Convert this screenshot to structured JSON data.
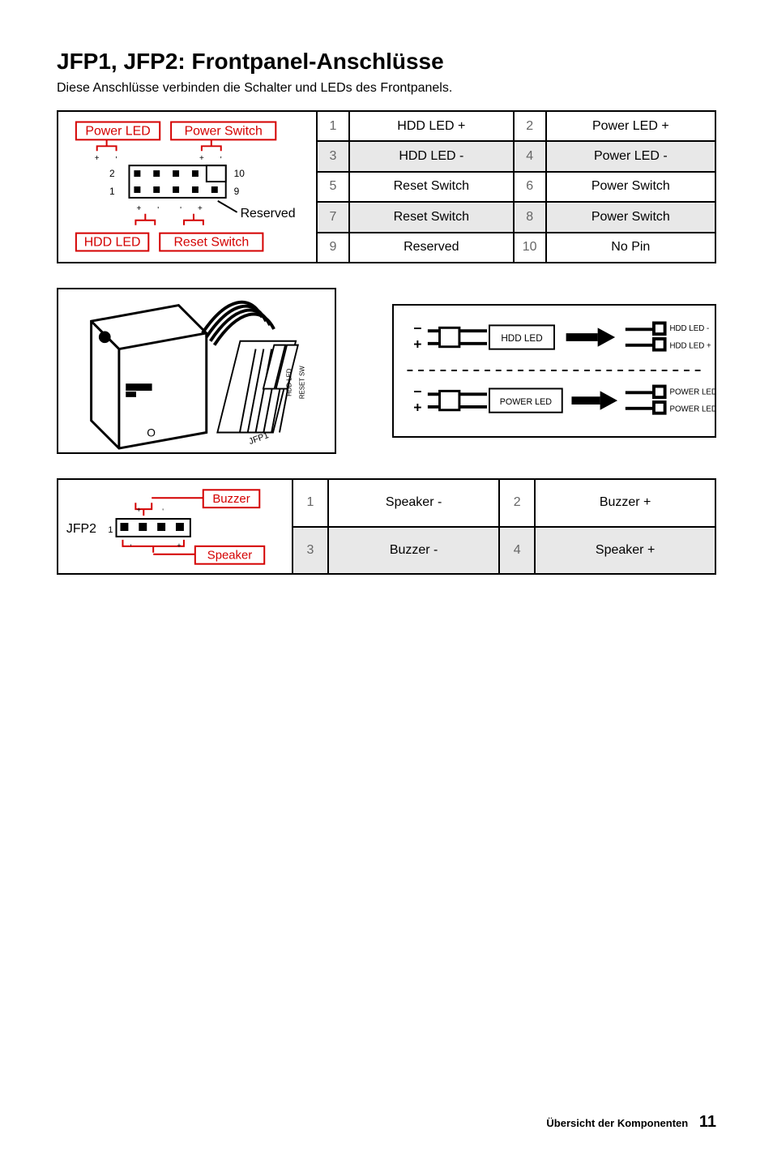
{
  "title": "JFP1, JFP2: Frontpanel-Anschlüsse",
  "subtitle": "Diese Anschlüsse verbinden die Schalter und LEDs des Frontpanels.",
  "jfp1": {
    "labels": {
      "power_led": "Power LED",
      "power_switch": "Power Switch",
      "reserved": "Reserved",
      "hdd_led": "HDD LED",
      "reset_switch": "Reset Switch",
      "pin2": "2",
      "pin1": "1",
      "pin10": "10",
      "pin9": "9",
      "polarity": "+"
    },
    "pins": [
      {
        "n": "1",
        "label": "HDD LED +",
        "n2": "2",
        "label2": "Power LED +",
        "shade": false
      },
      {
        "n": "3",
        "label": "HDD LED -",
        "n2": "4",
        "label2": "Power LED -",
        "shade": true
      },
      {
        "n": "5",
        "label": "Reset Switch",
        "n2": "6",
        "label2": "Power Switch",
        "shade": false
      },
      {
        "n": "7",
        "label": "Reset Switch",
        "n2": "8",
        "label2": "Power Switch",
        "shade": true
      },
      {
        "n": "9",
        "label": "Reserved",
        "n2": "10",
        "label2": "No Pin",
        "shade": false
      }
    ]
  },
  "mid": {
    "case_label": "O",
    "cable_hdd": "HDD LED",
    "cable_reset": "RESET SW",
    "cable_jfp1": "JFP1",
    "led": {
      "hdd": "HDD LED",
      "hdd_minus": "HDD LED -",
      "hdd_plus": "HDD LED +",
      "power": "POWER LED",
      "power_minus": "POWER LED -",
      "power_plus": "POWER LED +"
    }
  },
  "jfp2": {
    "label": "JFP2",
    "buzzer": "Buzzer",
    "speaker": "Speaker",
    "pin1": "1",
    "pins": [
      {
        "n": "1",
        "label": "Speaker -",
        "n2": "2",
        "label2": "Buzzer +",
        "shade": false
      },
      {
        "n": "3",
        "label": "Buzzer -",
        "n2": "4",
        "label2": "Speaker +",
        "shade": true
      }
    ]
  },
  "footer": {
    "section": "Übersicht der Komponenten",
    "page": "11"
  },
  "colors": {
    "red": "#d40000",
    "grey": "#e8e8e8"
  }
}
